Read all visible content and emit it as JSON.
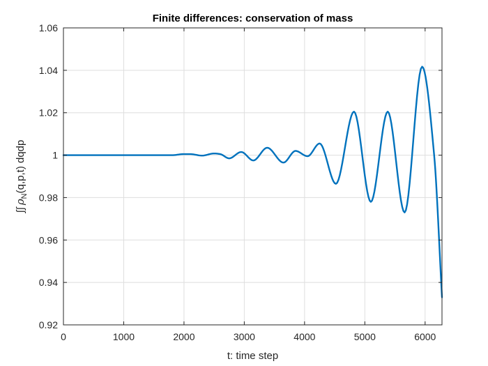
{
  "chart_data": {
    "type": "line",
    "title": "Finite differences: conservation of mass",
    "xlabel": "t: time step",
    "ylabel": {
      "integral": "∫∫",
      "rho": "ρ",
      "sub": "N",
      "rest": "(q,p,t) dqdp"
    },
    "xlim": [
      0,
      6280
    ],
    "ylim": [
      0.92,
      1.06
    ],
    "xticks": [
      "0",
      "1000",
      "2000",
      "3000",
      "4000",
      "5000",
      "6000"
    ],
    "yticks": [
      "0.92",
      "0.94",
      "0.96",
      "0.98",
      "1",
      "1.02",
      "1.04",
      "1.06"
    ],
    "grid": true,
    "line_color": "#0072BD",
    "series": [
      {
        "x": [
          0,
          1000,
          1500,
          1800,
          2000,
          2100,
          2300,
          2500,
          2600,
          2750,
          2950,
          3150,
          3380,
          3650,
          3850,
          4050,
          4250,
          4520,
          4820,
          5100,
          5380,
          5660,
          5950,
          6150,
          6280
        ],
        "y": [
          1.0,
          1.0,
          1.0,
          1.0,
          1.0005,
          1.0005,
          0.9998,
          1.0008,
          1.0005,
          0.9985,
          1.0015,
          0.9975,
          1.0035,
          0.9965,
          1.002,
          0.9995,
          1.0055,
          0.9865,
          1.0205,
          0.978,
          1.0205,
          0.973,
          1.0417,
          1.0,
          0.933
        ]
      }
    ]
  }
}
